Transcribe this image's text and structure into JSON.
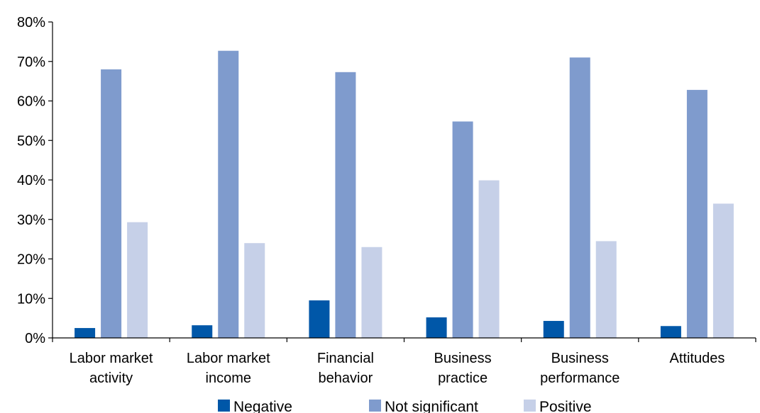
{
  "chart_data": {
    "type": "bar",
    "title": "",
    "xlabel": "",
    "ylabel": "",
    "ylim": [
      0,
      80
    ],
    "yticks": [
      0,
      10,
      20,
      30,
      40,
      50,
      60,
      70,
      80
    ],
    "ytick_suffix": "%",
    "grid": false,
    "legend_position": "bottom",
    "categories": [
      [
        "Labor market",
        "activity"
      ],
      [
        "Labor market",
        "income"
      ],
      [
        "Financial",
        "behavior"
      ],
      [
        "Business",
        "practice"
      ],
      [
        "Business",
        "performance"
      ],
      [
        "Attitudes"
      ]
    ],
    "series": [
      {
        "name": "Negative",
        "color": "#0057a8",
        "values": [
          2.5,
          3.2,
          9.5,
          5.2,
          4.3,
          3.0
        ]
      },
      {
        "name": "Not significant",
        "color": "#7f9bcd",
        "values": [
          68,
          72.7,
          67.3,
          54.8,
          71,
          62.8
        ]
      },
      {
        "name": "Positive",
        "color": "#c6d0e8",
        "values": [
          29.3,
          24,
          23,
          39.9,
          24.5,
          34
        ]
      }
    ]
  }
}
